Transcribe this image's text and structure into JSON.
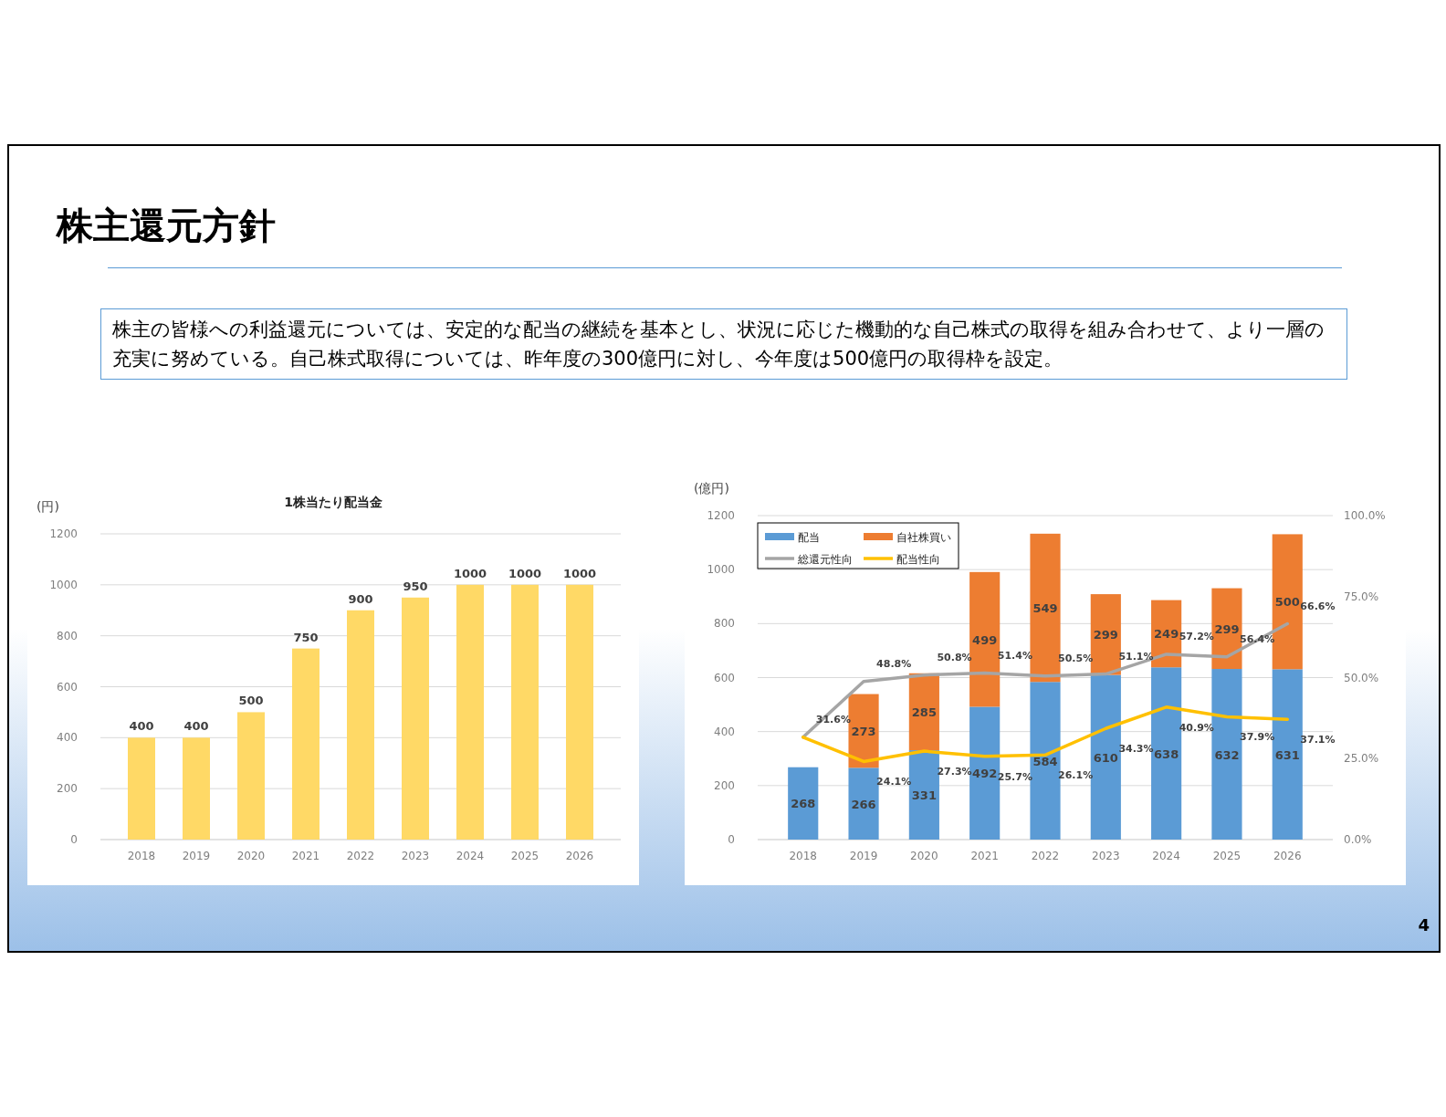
{
  "chart_data": [
    {
      "type": "bar",
      "title": "1株当たり配当金",
      "ylabel": "(円)",
      "annotations": [
        "株主還元方針",
        "株主の皆様への利益還元については、安定的な配当の継続を基本とし、状況に応じた機動的な自己株式の取得を組み合わせて、より一層の充実に努めている。自己株式取得については、昨年度の300億円に対し、今年度は500億円の取得枠を設定。",
        "4"
      ],
      "categories": [
        "2018",
        "2019",
        "2020",
        "2021",
        "2022",
        "2023",
        "2024",
        "2025",
        "2026"
      ],
      "values": [
        400,
        400,
        500,
        750,
        900,
        950,
        1000,
        1000,
        1000
      ],
      "color": "#ffd966",
      "data_labels": true,
      "ylim": [
        0,
        1200
      ],
      "yticks": [
        0,
        200,
        400,
        600,
        800,
        1000,
        1200
      ],
      "grid": "y"
    },
    {
      "type": "bar",
      "ylabel": "(億円)",
      "stacked": true,
      "legend": "top left",
      "grid": "y",
      "categories": [
        "2018",
        "2019",
        "2020",
        "2021",
        "2022",
        "2023",
        "2024",
        "2025",
        "2026"
      ],
      "ylim": [
        0,
        1200
      ],
      "yticks": [
        0,
        200,
        400,
        600,
        800,
        1000,
        1200
      ],
      "y2lim": [
        0,
        100
      ],
      "y2ticks": [
        {
          "value": 0,
          "label": "0.0%"
        },
        {
          "value": 25,
          "label": "25.0%"
        },
        {
          "value": 50,
          "label": "50.0%"
        },
        {
          "value": 75,
          "label": "75.0%"
        },
        {
          "value": 100,
          "label": "100.0%"
        }
      ],
      "series": [
        {
          "name": "配当",
          "type": "bar",
          "color": "#5b9bd5",
          "values": [
            268,
            266,
            331,
            492,
            584,
            610,
            638,
            632,
            631
          ],
          "value_labels": [
            "268",
            "266",
            "331",
            "492",
            "584",
            "610",
            "638",
            "632",
            "631"
          ]
        },
        {
          "name": "自社株買い",
          "type": "bar",
          "color": "#ed7d31",
          "values": [
            null,
            273,
            285,
            499,
            549,
            299,
            249,
            299,
            500
          ],
          "value_labels": [
            null,
            "273",
            "285",
            "499",
            "549",
            "299",
            "249",
            "299",
            "500"
          ]
        },
        {
          "name": "総還元性向",
          "type": "line",
          "axis": "y2",
          "color": "#a5a5a5",
          "values": [
            31.6,
            48.8,
            50.8,
            51.4,
            50.5,
            51.1,
            57.2,
            56.4,
            66.6
          ],
          "value_labels": [
            "31.6%",
            "48.8%",
            "50.8%",
            "51.4%",
            "50.5%",
            "51.1%",
            "57.2%",
            "56.4%",
            "66.6%"
          ]
        },
        {
          "name": "配当性向",
          "type": "line",
          "axis": "y2",
          "color": "#ffc000",
          "values": [
            31.6,
            24.1,
            27.3,
            25.7,
            26.1,
            34.3,
            40.9,
            37.9,
            37.1
          ],
          "value_labels": [
            null,
            "24.1%",
            "27.3%",
            "25.7%",
            "26.1%",
            "34.3%",
            "40.9%",
            "37.9%",
            "37.1%"
          ]
        }
      ]
    }
  ]
}
